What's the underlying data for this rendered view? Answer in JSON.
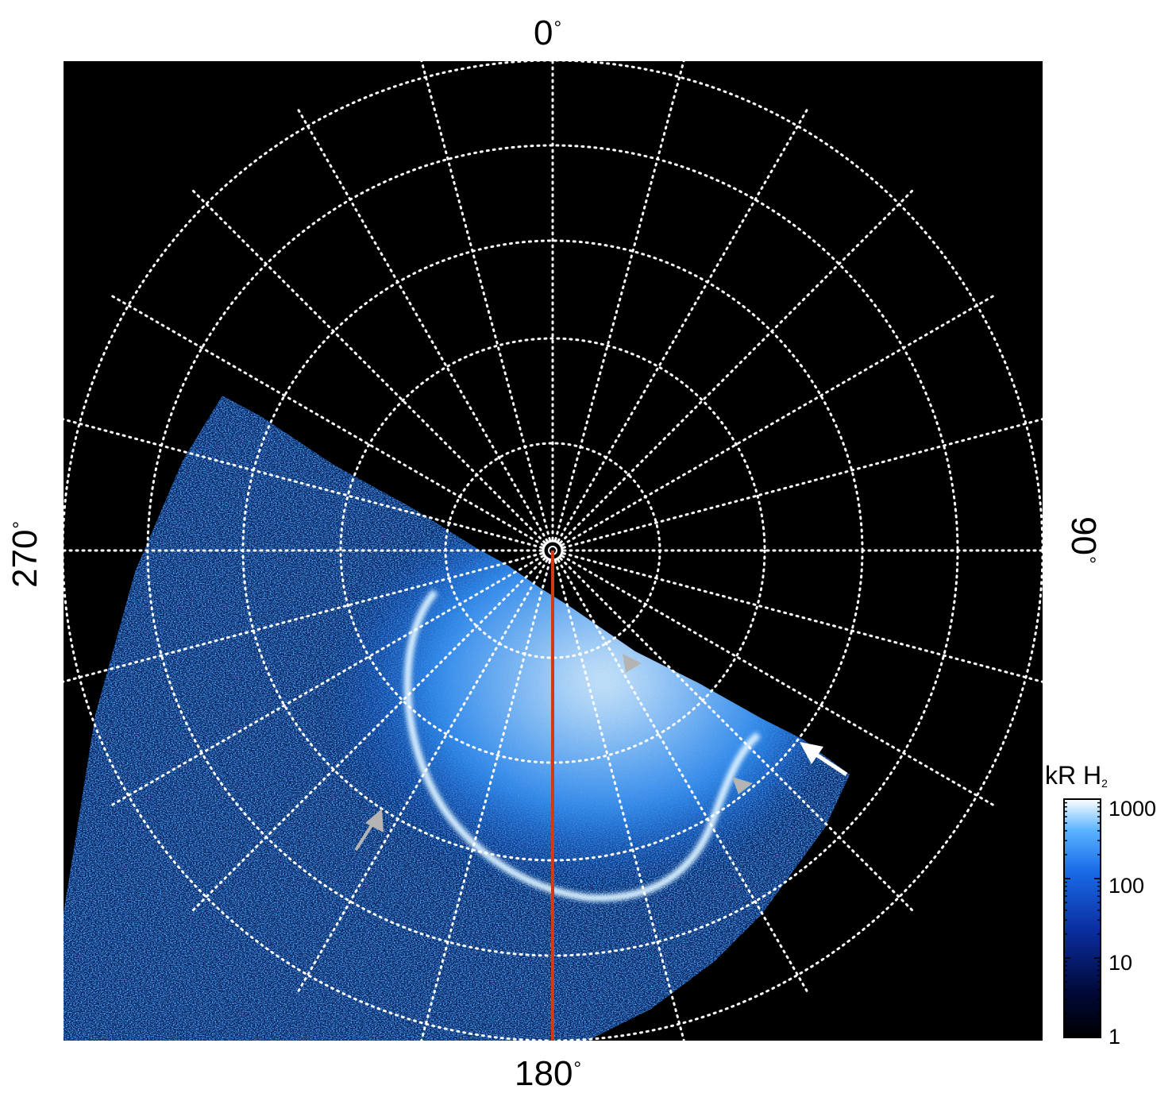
{
  "figure": {
    "longitude_labels": {
      "top": {
        "value": "0",
        "unit": "°"
      },
      "right": {
        "value": "90",
        "unit": "°"
      },
      "bottom": {
        "value": "180",
        "unit": "°"
      },
      "left": {
        "value": "270",
        "unit": "°"
      }
    },
    "colorbar": {
      "title_main": "kR H",
      "title_sub": "2",
      "scale": "log",
      "ticks": [
        "1000",
        "100",
        "10",
        "1"
      ],
      "colors": [
        "#000000",
        "#000a3c",
        "#0a2ea0",
        "#1a6be8",
        "#5bb4ff",
        "#ffffff"
      ]
    },
    "colors": {
      "background": "#000000",
      "grid": "#ffffff",
      "meridian_line": "#d03a14",
      "white_arrow": "#ffffff",
      "gray_arrow": "#b4b4b4",
      "aurora_low": "#0a3aa8",
      "aurora_mid": "#2f8cf0",
      "aurora_high": "#d8f0ff"
    },
    "annotations": [
      "white-arrow",
      "gray-arrow-left",
      "gray-arrowhead-upper",
      "gray-arrowhead-right"
    ]
  }
}
